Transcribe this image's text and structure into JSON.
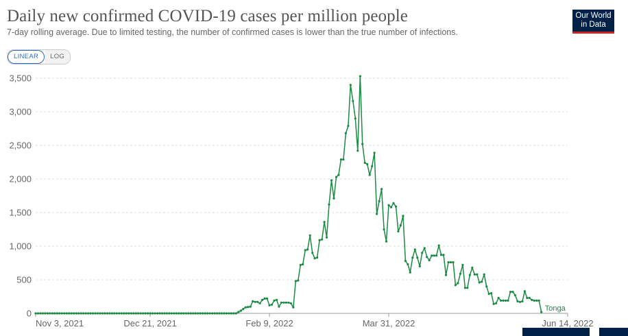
{
  "header": {
    "title": "Daily new confirmed COVID-19 cases per million people",
    "subtitle": "7-day rolling average. Due to limited testing, the number of confirmed cases is lower than the true number of infections.",
    "logo_line1": "Our World",
    "logo_line2": "in Data"
  },
  "controls": {
    "linear_label": "LINEAR",
    "log_label": "LOG",
    "active": "linear"
  },
  "colors": {
    "series": "#1a8a42",
    "grid": "#dddddd",
    "logo_bg": "#002147",
    "logo_accent": "#ce261e"
  },
  "chart_data": {
    "type": "line",
    "title": "Daily new confirmed COVID-19 cases per million people",
    "subtitle": "7-day rolling average. Due to limited testing, the number of confirmed cases is lower than the true number of infections.",
    "ylim": [
      0,
      3500
    ],
    "yticks": [
      0,
      500,
      1000,
      1500,
      2000,
      2500,
      3000,
      3500
    ],
    "ytick_labels": [
      "0",
      "500",
      "1,000",
      "1,500",
      "2,000",
      "2,500",
      "3,000",
      "3,500"
    ],
    "xlim": [
      "2021-11-03",
      "2022-06-14"
    ],
    "xticks": [
      "2021-11-03",
      "2021-12-21",
      "2022-02-09",
      "2022-03-31",
      "2022-06-14"
    ],
    "xtick_labels": [
      "Nov 3, 2021",
      "Dec 21, 2021",
      "Feb 9, 2022",
      "Mar 31, 2022",
      "Jun 14, 2022"
    ],
    "grid": true,
    "series": [
      {
        "name": "Tonga",
        "points": [
          [
            "2021-11-03",
            0
          ],
          [
            "2022-01-26",
            0
          ],
          [
            "2022-01-28",
            40
          ],
          [
            "2022-01-30",
            90
          ],
          [
            "2022-02-01",
            100
          ],
          [
            "2022-02-02",
            180
          ],
          [
            "2022-02-03",
            170
          ],
          [
            "2022-02-04",
            170
          ],
          [
            "2022-02-05",
            150
          ],
          [
            "2022-02-06",
            200
          ],
          [
            "2022-02-07",
            220
          ],
          [
            "2022-02-08",
            220
          ],
          [
            "2022-02-09",
            120
          ],
          [
            "2022-02-10",
            130
          ],
          [
            "2022-02-11",
            190
          ],
          [
            "2022-02-12",
            200
          ],
          [
            "2022-02-13",
            100
          ],
          [
            "2022-02-14",
            160
          ],
          [
            "2022-02-15",
            160
          ],
          [
            "2022-02-16",
            160
          ],
          [
            "2022-02-17",
            160
          ],
          [
            "2022-02-18",
            150
          ],
          [
            "2022-02-19",
            90
          ],
          [
            "2022-02-20",
            480
          ],
          [
            "2022-02-21",
            490
          ],
          [
            "2022-02-22",
            720
          ],
          [
            "2022-02-23",
            730
          ],
          [
            "2022-02-24",
            940
          ],
          [
            "2022-02-25",
            950
          ],
          [
            "2022-02-26",
            1160
          ],
          [
            "2022-02-27",
            900
          ],
          [
            "2022-02-28",
            820
          ],
          [
            "2022-03-01",
            830
          ],
          [
            "2022-03-02",
            1090
          ],
          [
            "2022-03-03",
            1100
          ],
          [
            "2022-03-04",
            1360
          ],
          [
            "2022-03-05",
            1130
          ],
          [
            "2022-03-06",
            1620
          ],
          [
            "2022-03-07",
            1980
          ],
          [
            "2022-03-08",
            1710
          ],
          [
            "2022-03-09",
            2030
          ],
          [
            "2022-03-10",
            2060
          ],
          [
            "2022-03-11",
            2290
          ],
          [
            "2022-03-12",
            2290
          ],
          [
            "2022-03-13",
            2680
          ],
          [
            "2022-03-14",
            2790
          ],
          [
            "2022-03-15",
            3400
          ],
          [
            "2022-03-16",
            3160
          ],
          [
            "2022-03-17",
            2900
          ],
          [
            "2022-03-18",
            2420
          ],
          [
            "2022-03-19",
            3530
          ],
          [
            "2022-03-20",
            2520
          ],
          [
            "2022-03-21",
            2240
          ],
          [
            "2022-03-22",
            2220
          ],
          [
            "2022-03-23",
            2060
          ],
          [
            "2022-03-24",
            2190
          ],
          [
            "2022-03-25",
            2390
          ],
          [
            "2022-03-26",
            1480
          ],
          [
            "2022-03-27",
            1670
          ],
          [
            "2022-03-28",
            1850
          ],
          [
            "2022-03-29",
            1250
          ],
          [
            "2022-03-30",
            1070
          ],
          [
            "2022-03-31",
            1610
          ],
          [
            "2022-04-01",
            1580
          ],
          [
            "2022-04-02",
            1640
          ],
          [
            "2022-04-03",
            1590
          ],
          [
            "2022-04-04",
            1220
          ],
          [
            "2022-04-05",
            1310
          ],
          [
            "2022-04-06",
            1450
          ],
          [
            "2022-04-07",
            780
          ],
          [
            "2022-04-08",
            730
          ],
          [
            "2022-04-09",
            610
          ],
          [
            "2022-04-10",
            830
          ],
          [
            "2022-04-11",
            950
          ],
          [
            "2022-04-12",
            830
          ],
          [
            "2022-04-13",
            700
          ],
          [
            "2022-04-14",
            900
          ],
          [
            "2022-04-15",
            970
          ],
          [
            "2022-04-16",
            840
          ],
          [
            "2022-04-17",
            790
          ],
          [
            "2022-04-18",
            860
          ],
          [
            "2022-04-19",
            860
          ],
          [
            "2022-04-20",
            860
          ],
          [
            "2022-04-21",
            1010
          ],
          [
            "2022-04-22",
            870
          ],
          [
            "2022-04-23",
            870
          ],
          [
            "2022-04-24",
            570
          ],
          [
            "2022-04-25",
            760
          ],
          [
            "2022-04-26",
            760
          ],
          [
            "2022-04-27",
            760
          ],
          [
            "2022-04-28",
            420
          ],
          [
            "2022-04-29",
            450
          ],
          [
            "2022-04-30",
            590
          ],
          [
            "2022-05-01",
            720
          ],
          [
            "2022-05-02",
            380
          ],
          [
            "2022-05-03",
            380
          ],
          [
            "2022-05-04",
            570
          ],
          [
            "2022-05-05",
            680
          ],
          [
            "2022-05-06",
            580
          ],
          [
            "2022-05-07",
            580
          ],
          [
            "2022-05-08",
            460
          ],
          [
            "2022-05-09",
            470
          ],
          [
            "2022-05-10",
            580
          ],
          [
            "2022-05-11",
            400
          ],
          [
            "2022-05-12",
            290
          ],
          [
            "2022-05-13",
            300
          ],
          [
            "2022-05-14",
            140
          ],
          [
            "2022-05-15",
            150
          ],
          [
            "2022-05-16",
            230
          ],
          [
            "2022-05-17",
            190
          ],
          [
            "2022-05-18",
            190
          ],
          [
            "2022-05-19",
            190
          ],
          [
            "2022-05-20",
            190
          ],
          [
            "2022-05-21",
            320
          ],
          [
            "2022-05-22",
            320
          ],
          [
            "2022-05-23",
            270
          ],
          [
            "2022-05-24",
            180
          ],
          [
            "2022-05-25",
            170
          ],
          [
            "2022-05-26",
            180
          ],
          [
            "2022-05-27",
            330
          ],
          [
            "2022-05-28",
            230
          ],
          [
            "2022-05-29",
            230
          ],
          [
            "2022-05-30",
            200
          ],
          [
            "2022-05-31",
            190
          ],
          [
            "2022-06-01",
            190
          ],
          [
            "2022-06-02",
            190
          ],
          [
            "2022-06-03",
            20
          ]
        ]
      }
    ]
  }
}
